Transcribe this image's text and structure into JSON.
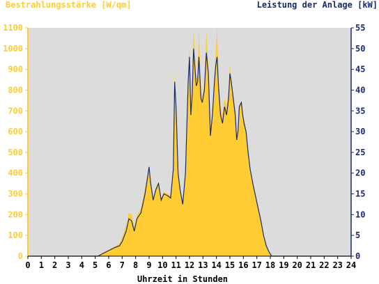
{
  "chart_data": {
    "type": "area",
    "left_axis_title": "Bestrahlungsstärke [W/qm]",
    "right_axis_title": "Leistung der Anlage [kW]",
    "xlabel": "Uhrzeit in Stunden",
    "x_ticks": [
      "0",
      "1",
      "2",
      "3",
      "4",
      "5",
      "6",
      "7",
      "8",
      "9",
      "10",
      "11",
      "12",
      "13",
      "14",
      "15",
      "16",
      "17",
      "18",
      "19",
      "20",
      "21",
      "22",
      "23",
      "24"
    ],
    "y_left_ticks": [
      "0",
      "100",
      "200",
      "300",
      "400",
      "500",
      "600",
      "700",
      "800",
      "900",
      "1000",
      "1100"
    ],
    "y_right_ticks": [
      "0",
      "5",
      "10",
      "15",
      "20",
      "25",
      "30",
      "35",
      "40",
      "45",
      "50",
      "55"
    ],
    "xlim": [
      0,
      24
    ],
    "ylim_left": [
      0,
      1100
    ],
    "ylim_right": [
      0,
      55
    ],
    "grid": false,
    "colors": {
      "irradiance": "#ffcc33",
      "power": "#1a2a6e",
      "plot_bg": "#dcdcdc",
      "left_axis": "#ffcc33",
      "right_axis": "#1a2a6e"
    },
    "series": [
      {
        "name": "Bestrahlungsstärke [W/qm]",
        "axis": "left",
        "x": [
          0,
          5.2,
          5.5,
          5.8,
          6.1,
          6.4,
          6.8,
          7.0,
          7.3,
          7.5,
          7.7,
          7.9,
          8.1,
          8.4,
          8.7,
          9.0,
          9.1,
          9.3,
          9.5,
          9.7,
          9.9,
          10.1,
          10.4,
          10.6,
          10.8,
          10.9,
          11.0,
          11.15,
          11.3,
          11.5,
          11.7,
          11.9,
          12.0,
          12.1,
          12.2,
          12.3,
          12.5,
          12.6,
          12.7,
          12.85,
          12.95,
          13.1,
          13.25,
          13.4,
          13.55,
          13.7,
          13.85,
          13.95,
          14.05,
          14.15,
          14.3,
          14.45,
          14.6,
          14.75,
          14.9,
          15.0,
          15.1,
          15.25,
          15.4,
          15.5,
          15.6,
          15.7,
          15.85,
          15.95,
          16.05,
          16.2,
          16.35,
          16.5,
          16.7,
          16.9,
          17.1,
          17.3,
          17.5,
          17.7,
          17.9,
          18.1,
          18.3,
          18.5,
          18.7,
          18.9,
          19.1,
          19.3,
          19.5,
          19.7,
          24
        ],
        "values": [
          0,
          0,
          15,
          25,
          35,
          45,
          60,
          90,
          150,
          210,
          200,
          140,
          200,
          230,
          330,
          420,
          360,
          280,
          330,
          360,
          280,
          310,
          300,
          290,
          430,
          890,
          720,
          420,
          330,
          260,
          400,
          870,
          1010,
          700,
          780,
          1100,
          850,
          870,
          1100,
          800,
          770,
          820,
          1080,
          900,
          600,
          710,
          860,
          980,
          1100,
          850,
          720,
          680,
          760,
          720,
          800,
          920,
          860,
          780,
          700,
          560,
          600,
          730,
          750,
          690,
          660,
          610,
          520,
          430,
          360,
          300,
          230,
          170,
          100,
          50,
          20,
          0,
          0,
          0,
          0,
          0,
          0,
          0,
          0,
          0,
          0
        ]
      },
      {
        "name": "Leistung der Anlage [kW]",
        "axis": "right",
        "x": [
          0,
          5.2,
          5.5,
          5.8,
          6.1,
          6.4,
          6.8,
          7.0,
          7.3,
          7.5,
          7.7,
          7.9,
          8.1,
          8.4,
          8.7,
          9.0,
          9.1,
          9.3,
          9.5,
          9.7,
          9.9,
          10.1,
          10.4,
          10.6,
          10.8,
          10.9,
          11.0,
          11.15,
          11.3,
          11.5,
          11.7,
          11.9,
          12.0,
          12.1,
          12.2,
          12.3,
          12.5,
          12.6,
          12.7,
          12.85,
          12.95,
          13.1,
          13.25,
          13.4,
          13.55,
          13.7,
          13.85,
          13.95,
          14.05,
          14.15,
          14.3,
          14.45,
          14.6,
          14.75,
          14.9,
          15.0,
          15.1,
          15.25,
          15.4,
          15.5,
          15.6,
          15.7,
          15.85,
          15.95,
          16.05,
          16.2,
          16.35,
          16.5,
          16.7,
          16.9,
          17.1,
          17.3,
          17.5,
          17.7,
          17.9,
          18.1,
          18.3,
          18.5,
          18.7,
          18.9,
          19.1,
          19.3,
          19.5,
          19.7,
          24
        ],
        "values": [
          0,
          0,
          0.5,
          1.0,
          1.5,
          2.0,
          2.5,
          3.5,
          6.0,
          9.0,
          8.5,
          6.0,
          9.0,
          10.5,
          15.0,
          21.5,
          18.0,
          13.5,
          16.0,
          17.5,
          13.5,
          15.0,
          14.5,
          14.0,
          21.0,
          42.0,
          36.0,
          20.0,
          16.0,
          12.5,
          20.0,
          42.0,
          48.0,
          34.0,
          39.0,
          50.0,
          41.0,
          42.0,
          48.0,
          38.0,
          37.0,
          40.0,
          49.0,
          44.0,
          29.0,
          34.0,
          42.0,
          46.0,
          48.0,
          41.0,
          34.0,
          32.0,
          36.0,
          34.0,
          38.0,
          44.0,
          42.0,
          38.0,
          34.0,
          28.0,
          30.0,
          36.0,
          37.0,
          34.0,
          32.0,
          30.0,
          25.0,
          21.0,
          17.5,
          14.5,
          11.5,
          8.5,
          5.0,
          2.5,
          1.0,
          0,
          0,
          0,
          0,
          0,
          0,
          0,
          0,
          0,
          0
        ]
      }
    ]
  }
}
